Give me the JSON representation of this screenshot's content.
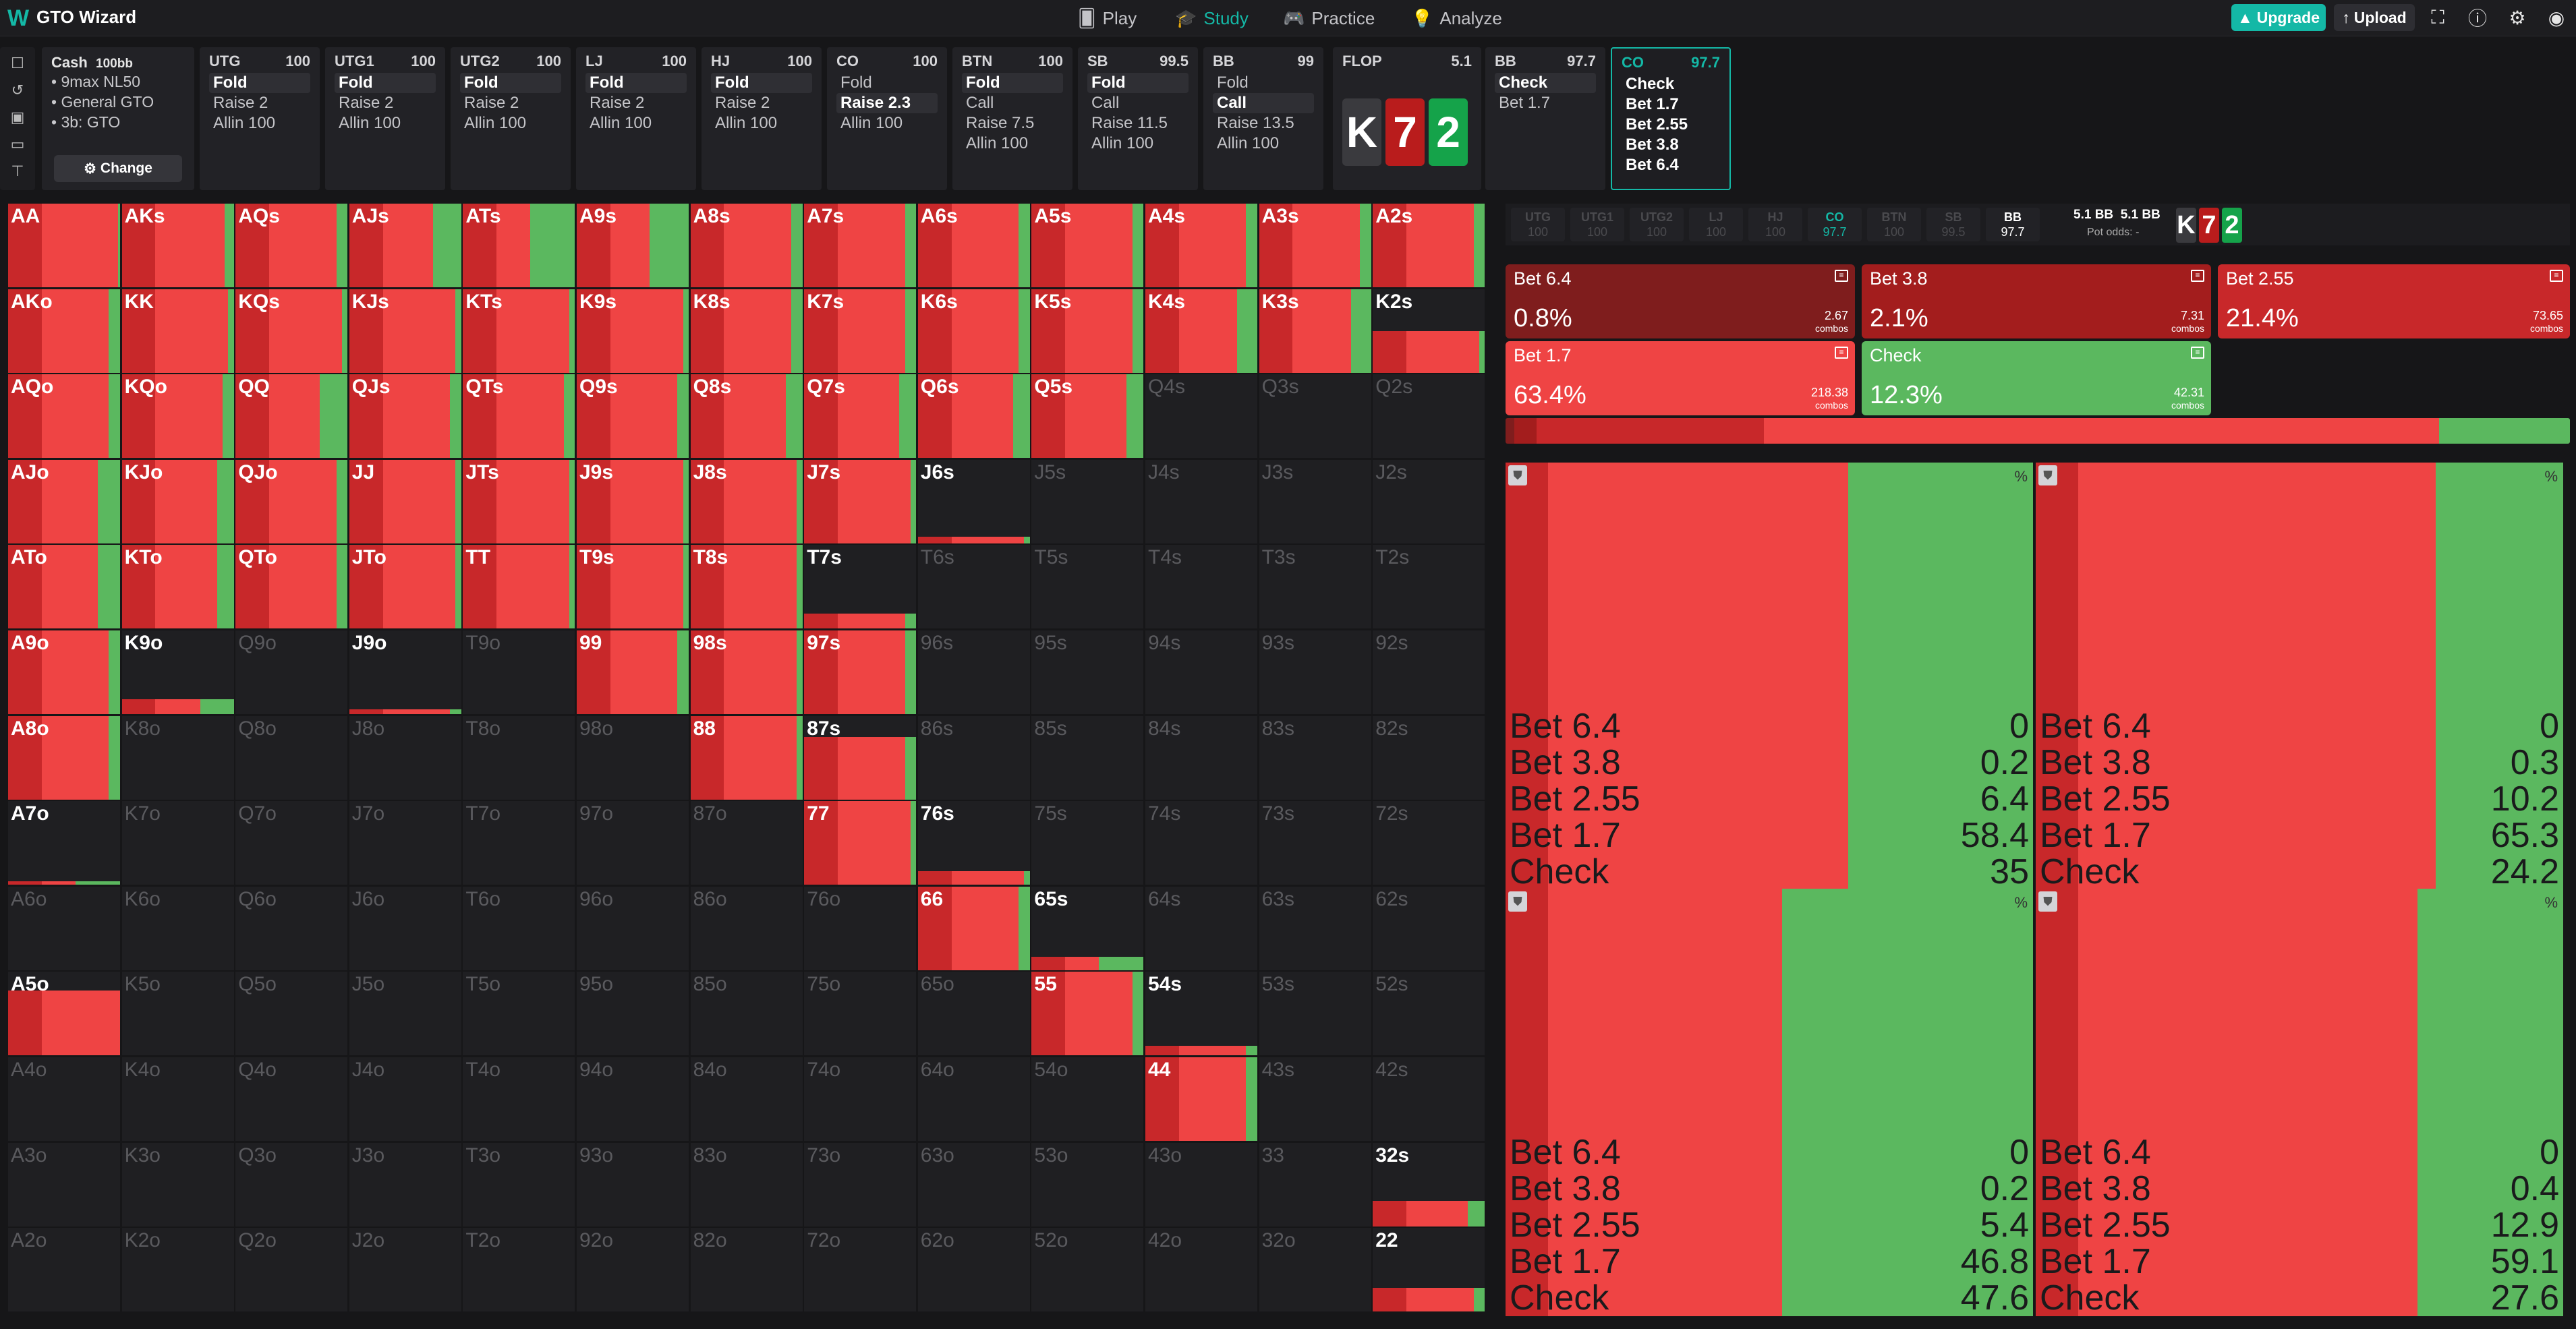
{
  "app": {
    "title": "GTO Wizard"
  },
  "nav": {
    "items": [
      {
        "label": "Play",
        "icon": "cards-icon"
      },
      {
        "label": "Study",
        "icon": "graduation-cap-icon",
        "active": true
      },
      {
        "label": "Practice",
        "icon": "gamepad-icon"
      },
      {
        "label": "Analyze",
        "icon": "lightbulb-icon"
      }
    ],
    "upgrade_label": "Upgrade",
    "upload_label": "Upload"
  },
  "config": {
    "title": "Cash",
    "stack": "100bb",
    "lines": [
      "9max NL50",
      "General GTO",
      "3b: GTO"
    ],
    "change_label": "Change"
  },
  "positions": [
    {
      "name": "UTG",
      "stack": "100",
      "actions": [
        "Fold",
        "Raise 2",
        "Allin 100"
      ],
      "selected": 0
    },
    {
      "name": "UTG1",
      "stack": "100",
      "actions": [
        "Fold",
        "Raise 2",
        "Allin 100"
      ],
      "selected": 0
    },
    {
      "name": "UTG2",
      "stack": "100",
      "actions": [
        "Fold",
        "Raise 2",
        "Allin 100"
      ],
      "selected": 0
    },
    {
      "name": "LJ",
      "stack": "100",
      "actions": [
        "Fold",
        "Raise 2",
        "Allin 100"
      ],
      "selected": 0
    },
    {
      "name": "HJ",
      "stack": "100",
      "actions": [
        "Fold",
        "Raise 2",
        "Allin 100"
      ],
      "selected": 0
    },
    {
      "name": "CO",
      "stack": "100",
      "actions": [
        "Fold",
        "Raise 2.3",
        "Allin 100"
      ],
      "selected": 1
    },
    {
      "name": "BTN",
      "stack": "100",
      "actions": [
        "Fold",
        "Call",
        "Raise 7.5",
        "Allin 100"
      ],
      "selected": 0
    },
    {
      "name": "SB",
      "stack": "99.5",
      "actions": [
        "Fold",
        "Call",
        "Raise 11.5",
        "Allin 100"
      ],
      "selected": 0
    },
    {
      "name": "BB",
      "stack": "99",
      "actions": [
        "Fold",
        "Call",
        "Raise 13.5",
        "Allin 100"
      ],
      "selected": 1
    }
  ],
  "flop": {
    "label": "FLOP",
    "pot": "5.1",
    "cards": [
      {
        "rank": "K",
        "color": "#3a3a3e"
      },
      {
        "rank": "7",
        "color": "#b91c1c"
      },
      {
        "rank": "2",
        "color": "#15a34a"
      }
    ]
  },
  "bb_panel": {
    "name": "BB",
    "stack": "97.7",
    "actions": [
      "Check",
      "Bet 1.7"
    ],
    "selected": 0
  },
  "co_panel": {
    "name": "CO",
    "stack": "97.7",
    "actions": [
      "Check",
      "Bet 1.7",
      "Bet 2.55",
      "Bet 3.8",
      "Bet 6.4"
    ]
  },
  "grid": {
    "hands": [
      [
        "AA",
        "AKs",
        "AQs",
        "AJs",
        "ATs",
        "A9s",
        "A8s",
        "A7s",
        "A6s",
        "A5s",
        "A4s",
        "A3s",
        "A2s"
      ],
      [
        "AKo",
        "KK",
        "KQs",
        "KJs",
        "KTs",
        "K9s",
        "K8s",
        "K7s",
        "K6s",
        "K5s",
        "K4s",
        "K3s",
        "K2s"
      ],
      [
        "AQo",
        "KQo",
        "QQ",
        "QJs",
        "QTs",
        "Q9s",
        "Q8s",
        "Q7s",
        "Q6s",
        "Q5s",
        "Q4s",
        "Q3s",
        "Q2s"
      ],
      [
        "AJo",
        "KJo",
        "QJo",
        "JJ",
        "JTs",
        "J9s",
        "J8s",
        "J7s",
        "J6s",
        "J5s",
        "J4s",
        "J3s",
        "J2s"
      ],
      [
        "ATo",
        "KTo",
        "QTo",
        "JTo",
        "TT",
        "T9s",
        "T8s",
        "T7s",
        "T6s",
        "T5s",
        "T4s",
        "T3s",
        "T2s"
      ],
      [
        "A9o",
        "K9o",
        "Q9o",
        "J9o",
        "T9o",
        "99",
        "98s",
        "97s",
        "96s",
        "95s",
        "94s",
        "93s",
        "92s"
      ],
      [
        "A8o",
        "K8o",
        "Q8o",
        "J8o",
        "T8o",
        "98o",
        "88",
        "87s",
        "86s",
        "85s",
        "84s",
        "83s",
        "82s"
      ],
      [
        "A7o",
        "K7o",
        "Q7o",
        "J7o",
        "T7o",
        "97o",
        "87o",
        "77",
        "76s",
        "75s",
        "74s",
        "73s",
        "72s"
      ],
      [
        "A6o",
        "K6o",
        "Q6o",
        "J6o",
        "T6o",
        "96o",
        "86o",
        "76o",
        "66",
        "65s",
        "64s",
        "63s",
        "62s"
      ],
      [
        "A5o",
        "K5o",
        "Q5o",
        "J5o",
        "T5o",
        "95o",
        "85o",
        "75o",
        "65o",
        "55",
        "54s",
        "53s",
        "52s"
      ],
      [
        "A4o",
        "K4o",
        "Q4o",
        "J4o",
        "T4o",
        "94o",
        "84o",
        "74o",
        "64o",
        "54o",
        "44",
        "43s",
        "42s"
      ],
      [
        "A3o",
        "K3o",
        "Q3o",
        "J3o",
        "T3o",
        "93o",
        "83o",
        "73o",
        "63o",
        "53o",
        "43o",
        "33",
        "32s"
      ],
      [
        "A2o",
        "K2o",
        "Q2o",
        "J2o",
        "T2o",
        "92o",
        "82o",
        "72o",
        "62o",
        "52o",
        "42o",
        "32o",
        "22"
      ]
    ],
    "weights": [
      [
        1,
        1,
        1,
        1,
        1,
        1,
        1,
        1,
        1,
        1,
        1,
        1,
        1
      ],
      [
        1,
        1,
        1,
        1,
        1,
        1,
        1,
        1,
        1,
        1,
        1,
        1,
        0.5
      ],
      [
        1,
        1,
        1,
        1,
        1,
        1,
        1,
        1,
        1,
        1,
        0,
        0,
        0
      ],
      [
        1,
        1,
        1,
        1,
        1,
        1,
        1,
        1,
        0.08,
        0,
        0,
        0,
        0
      ],
      [
        1,
        1,
        1,
        1,
        1,
        1,
        1,
        0.18,
        0,
        0,
        0,
        0,
        0
      ],
      [
        1,
        0.18,
        0,
        0.06,
        0,
        1,
        1,
        1,
        0,
        0,
        0,
        0,
        0
      ],
      [
        1,
        0,
        0,
        0,
        0,
        0,
        1,
        0.75,
        0,
        0,
        0,
        0,
        0
      ],
      [
        0.04,
        0,
        0,
        0,
        0,
        0,
        0,
        1,
        0.16,
        0,
        0,
        0,
        0
      ],
      [
        0,
        0,
        0,
        0,
        0,
        0,
        0,
        0,
        1,
        0.16,
        0,
        0,
        0
      ],
      [
        0.78,
        0,
        0,
        0,
        0,
        0,
        0,
        0,
        0,
        1,
        0.12,
        0,
        0
      ],
      [
        0,
        0,
        0,
        0,
        0,
        0,
        0,
        0,
        0,
        0,
        1,
        0,
        0
      ],
      [
        0,
        0,
        0,
        0,
        0,
        0,
        0,
        0,
        0,
        0,
        0,
        0,
        0.3
      ],
      [
        0,
        0,
        0,
        0,
        0,
        0,
        0,
        0,
        0,
        0,
        0,
        0,
        0.28
      ]
    ],
    "check_share": [
      [
        0.02,
        0.08,
        0.1,
        0.25,
        0.4,
        0.35,
        0.1,
        0.1,
        0.1,
        0.1,
        0.1,
        0.1,
        0.1
      ],
      [
        0.1,
        0.05,
        0.05,
        0.05,
        0.05,
        0.05,
        0.1,
        0.1,
        0.1,
        0.1,
        0.18,
        0.18,
        0.05
      ],
      [
        0.1,
        0.1,
        0.25,
        0.1,
        0.1,
        0.1,
        0.15,
        0.15,
        0.15,
        0.15,
        0,
        0,
        0
      ],
      [
        0.2,
        0.15,
        0.1,
        0.05,
        0.05,
        0.05,
        0.05,
        0.05,
        0.05,
        0,
        0,
        0,
        0
      ],
      [
        0.2,
        0.15,
        0.1,
        0.05,
        0.05,
        0.05,
        0.05,
        0.1,
        0,
        0,
        0,
        0,
        0
      ],
      [
        0.1,
        0.3,
        0,
        0.1,
        0,
        0.1,
        0.05,
        0.1,
        0,
        0,
        0,
        0,
        0
      ],
      [
        0.1,
        0,
        0,
        0,
        0,
        0,
        0.05,
        0.1,
        0,
        0,
        0,
        0,
        0
      ],
      [
        0.4,
        0,
        0,
        0,
        0,
        0,
        0,
        0.05,
        0.05,
        0,
        0,
        0,
        0
      ],
      [
        0,
        0,
        0,
        0,
        0,
        0,
        0,
        0,
        0.1,
        0.4,
        0,
        0,
        0
      ],
      [
        0,
        0,
        0,
        0,
        0,
        0,
        0,
        0,
        0,
        0.1,
        0.1,
        0,
        0
      ],
      [
        0,
        0,
        0,
        0,
        0,
        0,
        0,
        0,
        0,
        0,
        0.1,
        0,
        0
      ],
      [
        0,
        0,
        0,
        0,
        0,
        0,
        0,
        0,
        0,
        0,
        0,
        0,
        0.15
      ],
      [
        0,
        0,
        0,
        0,
        0,
        0,
        0,
        0,
        0,
        0,
        0,
        0,
        0.1
      ]
    ]
  },
  "mini_positions": [
    {
      "name": "UTG",
      "stack": "100"
    },
    {
      "name": "UTG1",
      "stack": "100"
    },
    {
      "name": "UTG2",
      "stack": "100"
    },
    {
      "name": "LJ",
      "stack": "100"
    },
    {
      "name": "HJ",
      "stack": "100"
    },
    {
      "name": "CO",
      "stack": "97.7",
      "current": true
    },
    {
      "name": "BTN",
      "stack": "100"
    },
    {
      "name": "SB",
      "stack": "99.5"
    },
    {
      "name": "BB",
      "stack": "97.7",
      "bb": true
    }
  ],
  "pot": {
    "pot_label": "5.1 BB",
    "pot_label2": "5.1 BB",
    "odds_label": "Pot odds:",
    "odds_value": "-"
  },
  "action_cards": [
    {
      "name": "Bet 6.4",
      "pct": "0.8%",
      "combos": "2.67",
      "combos_label": "combos",
      "color": "#7f1d1d"
    },
    {
      "name": "Bet 3.8",
      "pct": "2.1%",
      "combos": "7.31",
      "combos_label": "combos",
      "color": "#a31d1d"
    },
    {
      "name": "Bet 2.55",
      "pct": "21.4%",
      "combos": "73.65",
      "combos_label": "combos",
      "color": "#c8282a"
    },
    {
      "name": "Bet 1.7",
      "pct": "63.4%",
      "combos": "218.38",
      "combos_label": "combos",
      "color": "#ef4444"
    },
    {
      "name": "Check",
      "pct": "12.3%",
      "combos": "42.31",
      "combos_label": "combos",
      "color": "#5bb85f"
    }
  ],
  "freq_colors": [
    "#7f1d1d",
    "#a31d1d",
    "#c8282a",
    "#ef4444",
    "#5bb85f"
  ],
  "freq_values": [
    0.8,
    2.1,
    21.4,
    63.4,
    12.3
  ],
  "quads": [
    {
      "rows": [
        {
          "label": "Bet 6.4",
          "value": "0"
        },
        {
          "label": "Bet 3.8",
          "value": "0.2"
        },
        {
          "label": "Bet 2.55",
          "value": "6.4"
        },
        {
          "label": "Bet 1.7",
          "value": "58.4"
        },
        {
          "label": "Check",
          "value": "35"
        }
      ],
      "pct_label": "%"
    },
    {
      "rows": [
        {
          "label": "Bet 6.4",
          "value": "0"
        },
        {
          "label": "Bet 3.8",
          "value": "0.3"
        },
        {
          "label": "Bet 2.55",
          "value": "10.2"
        },
        {
          "label": "Bet 1.7",
          "value": "65.3"
        },
        {
          "label": "Check",
          "value": "24.2"
        }
      ],
      "pct_label": "%"
    },
    {
      "rows": [
        {
          "label": "Bet 6.4",
          "value": "0"
        },
        {
          "label": "Bet 3.8",
          "value": "0.2"
        },
        {
          "label": "Bet 2.55",
          "value": "5.4"
        },
        {
          "label": "Bet 1.7",
          "value": "46.8"
        },
        {
          "label": "Check",
          "value": "47.6"
        }
      ],
      "pct_label": "%"
    },
    {
      "rows": [
        {
          "label": "Bet 6.4",
          "value": "0"
        },
        {
          "label": "Bet 3.8",
          "value": "0.4"
        },
        {
          "label": "Bet 2.55",
          "value": "12.9"
        },
        {
          "label": "Bet 1.7",
          "value": "59.1"
        },
        {
          "label": "Check",
          "value": "27.6"
        }
      ],
      "pct_label": "%"
    }
  ]
}
